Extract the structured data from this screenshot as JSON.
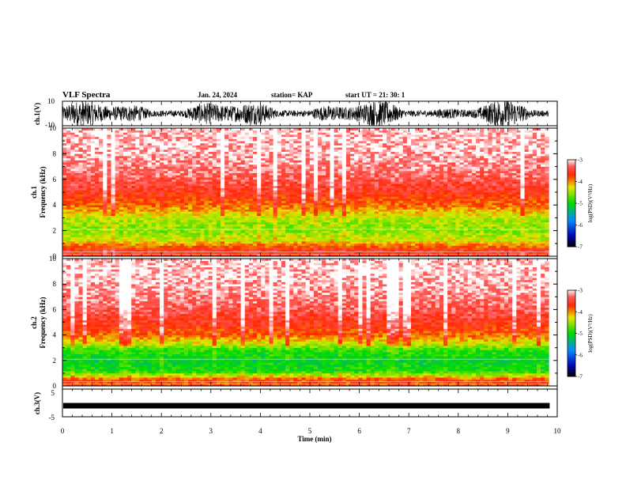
{
  "header": {
    "title": "VLF Spectra",
    "date": "Jan. 24, 2024",
    "station": "station= KAP",
    "start": "start UT =  21: 30: 1"
  },
  "chart_data": [
    {
      "type": "line",
      "name": "ch1-waveform",
      "ylabel": "ch.1(V)",
      "ylim": [
        -10,
        10
      ],
      "yticks": [
        "10",
        "-10"
      ],
      "xlim": [
        0,
        10
      ]
    },
    {
      "type": "heatmap",
      "name": "ch1-spectrogram",
      "ylabel": "ch.1",
      "ylabel2": "Frequency (kHz)",
      "ylim": [
        0,
        10
      ],
      "yticks": [
        "0",
        "2",
        "4",
        "6",
        "8",
        "10"
      ],
      "xlim": [
        0,
        9.83
      ],
      "colorbar": {
        "label": "log(PSD)(V²/Hz)",
        "range": [
          -7,
          -3
        ],
        "ticks": [
          "-3",
          "-4",
          "-5",
          "-6",
          "-7"
        ]
      },
      "profile": [
        {
          "f": 0.5,
          "level": -3.6
        },
        {
          "f": 1.2,
          "level": -4.3
        },
        {
          "f": 2.0,
          "level": -4.6
        },
        {
          "f": 2.8,
          "level": -4.5
        },
        {
          "f": 3.4,
          "level": -4.2
        },
        {
          "f": 4.0,
          "level": -3.9
        },
        {
          "f": 5.0,
          "level": -3.6
        },
        {
          "f": 6.5,
          "level": -3.3
        },
        {
          "f": 8.5,
          "level": -3.1
        }
      ]
    },
    {
      "type": "heatmap",
      "name": "ch2-spectrogram",
      "ylabel": "ch.2",
      "ylabel2": "Frequency (kHz)",
      "ylim": [
        0,
        10
      ],
      "yticks": [
        "0",
        "2",
        "4",
        "6",
        "8",
        "10"
      ],
      "xlim": [
        0,
        9.83
      ],
      "colorbar": {
        "label": "log(PSD)(V²/Hz)",
        "range": [
          -7,
          -3
        ],
        "ticks": [
          "-3",
          "-4",
          "-5",
          "-6",
          "-7"
        ]
      },
      "profile": [
        {
          "f": 0.5,
          "level": -3.8
        },
        {
          "f": 1.2,
          "level": -5.0
        },
        {
          "f": 2.0,
          "level": -5.1
        },
        {
          "f": 2.8,
          "level": -4.9
        },
        {
          "f": 3.4,
          "level": -4.3
        },
        {
          "f": 4.0,
          "level": -3.9
        },
        {
          "f": 5.0,
          "level": -3.6
        },
        {
          "f": 6.5,
          "level": -3.3
        },
        {
          "f": 8.5,
          "level": -3.1
        }
      ]
    },
    {
      "type": "line",
      "name": "ch3-waveform",
      "ylabel": "ch.3(V)",
      "ylim": [
        -5,
        5
      ],
      "yticks": [
        "5",
        "-5"
      ],
      "xlim": [
        0,
        10
      ],
      "level": -1
    }
  ],
  "xaxis": {
    "label": "Time (min)",
    "ticks": [
      "0",
      "1",
      "2",
      "3",
      "4",
      "5",
      "6",
      "7",
      "8",
      "9",
      "10"
    ]
  }
}
